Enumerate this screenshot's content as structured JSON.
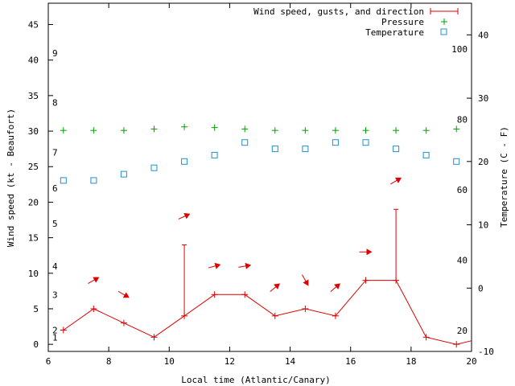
{
  "chart_data": {
    "type": "scatter",
    "title": "",
    "xlabel": "Local time (Atlantic/Canary)",
    "ylabel_left": "Wind speed (kt - Beaufort)",
    "ylabel_right": "Temperature (C - F)",
    "xlim": [
      6,
      20
    ],
    "ylim_left": [
      -1,
      48
    ],
    "ylim_right": [
      -10,
      45
    ],
    "x_ticks": [
      6,
      8,
      10,
      12,
      14,
      16,
      18,
      20
    ],
    "y_left_ticks": [
      0,
      5,
      10,
      15,
      20,
      25,
      30,
      35,
      40,
      45
    ],
    "y_right_c_ticks": [
      -10,
      0,
      10,
      20,
      30,
      40
    ],
    "fahrenheit_labels": [
      {
        "label": "20",
        "c": -6.67
      },
      {
        "label": "40",
        "c": 4.44
      },
      {
        "label": "60",
        "c": 15.56
      },
      {
        "label": "80",
        "c": 26.67
      },
      {
        "label": "100",
        "c": 37.78
      }
    ],
    "beaufort_labels": [
      {
        "label": "1",
        "kt": 1
      },
      {
        "label": "2",
        "kt": 2
      },
      {
        "label": "3",
        "kt": 7
      },
      {
        "label": "4",
        "kt": 11
      },
      {
        "label": "5",
        "kt": 17
      },
      {
        "label": "6",
        "kt": 22
      },
      {
        "label": "7",
        "kt": 27
      },
      {
        "label": "8",
        "kt": 34
      },
      {
        "label": "9",
        "kt": 41
      }
    ],
    "legend": [
      "Wind speed, gusts, and direction",
      "Pressure",
      "Temperature"
    ],
    "series": [
      {
        "name": "Wind speed, gusts, and direction",
        "x": [
          6.5,
          7.5,
          8.5,
          9.5,
          10.5,
          11.5,
          12.5,
          13.5,
          14.5,
          15.5,
          16.5,
          17.5,
          18.5,
          19.5,
          20
        ],
        "values": [
          2,
          5,
          3,
          1,
          4,
          7,
          7,
          4,
          5,
          4,
          9,
          9,
          1,
          0,
          0.5
        ]
      },
      {
        "name": "Gusts",
        "x": [
          10.5,
          17.5
        ],
        "values": [
          14,
          19
        ]
      },
      {
        "name": "Direction arrows",
        "x": [
          7.5,
          8.5,
          10.5,
          11.5,
          12.5,
          13.5,
          14.5,
          15.5,
          16.5,
          17.5
        ],
        "values": [
          9,
          7,
          18,
          11,
          11,
          8,
          9,
          8,
          13,
          23
        ],
        "direction_deg": [
          -30,
          30,
          -25,
          -15,
          -10,
          -40,
          60,
          -40,
          0,
          -30
        ]
      },
      {
        "name": "Pressure",
        "x": [
          6.5,
          7.5,
          8.5,
          9.5,
          10.5,
          11.5,
          12.5,
          13.5,
          14.5,
          15.5,
          16.5,
          17.5,
          18.5,
          19.5
        ],
        "values": [
          30.1,
          30.1,
          30.1,
          30.3,
          30.6,
          30.5,
          30.3,
          30.1,
          30.1,
          30.1,
          30.1,
          30.1,
          30.1,
          30.3
        ]
      },
      {
        "name": "Temperature",
        "x": [
          6.5,
          7.5,
          8.5,
          9.5,
          10.5,
          11.5,
          12.5,
          13.5,
          14.5,
          15.5,
          16.5,
          17.5,
          18.5,
          19.5
        ],
        "values": [
          17,
          17,
          18,
          19,
          20,
          21,
          23,
          22,
          22,
          23,
          23,
          22,
          21,
          20
        ]
      }
    ]
  }
}
